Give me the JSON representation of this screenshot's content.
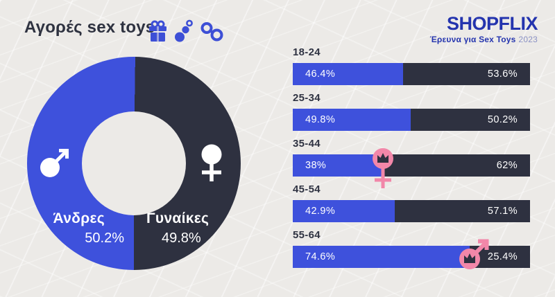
{
  "header": {
    "title": "Αγορές sex toys",
    "icons": [
      "gift-icon",
      "beads-icon",
      "handcuffs-icon"
    ]
  },
  "logo": {
    "name": "SHOPFLIX",
    "tagline": "Έρευνα για Sex Toys",
    "year": "2023",
    "color": "#2434AE",
    "year_color": "#8A91C4"
  },
  "colors": {
    "male_blue": "#3E51DC",
    "female_dark": "#2E3140",
    "accent_pink": "#F287A9",
    "crown_dark": "#2E3140",
    "text_dark": "#2F3342",
    "background": "#ECEAE7",
    "white": "#FFFFFF"
  },
  "chart_data": [
    {
      "type": "pie",
      "donut": true,
      "series_labels": [
        "Άνδρες",
        "Γυναίκες"
      ],
      "values": [
        50.2,
        49.8
      ],
      "value_labels": [
        "50.2%",
        "49.8%"
      ],
      "colors": [
        "#3E51DC",
        "#2E3140"
      ],
      "symbols": [
        "male-symbol",
        "female-symbol"
      ]
    },
    {
      "type": "bar",
      "orientation": "horizontal-stacked",
      "categories": [
        "18-24",
        "25-34",
        "35-44",
        "45-54",
        "55-64"
      ],
      "series": [
        {
          "name": "Άνδρες",
          "color": "#3E51DC",
          "values": [
            46.4,
            49.8,
            38,
            42.9,
            74.6
          ],
          "labels": [
            "46.4%",
            "49.8%",
            "38%",
            "42.9%",
            "74.6%"
          ]
        },
        {
          "name": "Γυναίκες",
          "color": "#2E3140",
          "values": [
            53.6,
            50.2,
            62,
            57.1,
            25.4
          ],
          "labels": [
            "53.6%",
            "50.2%",
            "62%",
            "57.1%",
            "25.4%"
          ]
        }
      ],
      "leader_icons": [
        null,
        null,
        "female-crown",
        null,
        "male-crown"
      ],
      "xlim": [
        0,
        100
      ]
    }
  ]
}
